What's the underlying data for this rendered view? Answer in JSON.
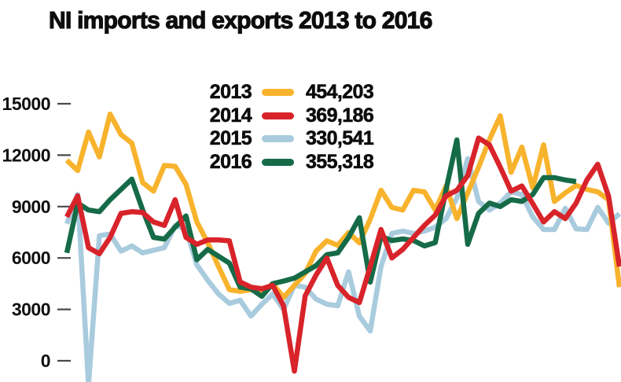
{
  "title": "NI imports and exports 2013 to 2016",
  "chart_data": {
    "type": "line",
    "title": "NI imports and exports 2013 to 2016",
    "x_unit": "week of year (1-52), no x-axis labels shown",
    "ylabel": "",
    "ylim": [
      -1500,
      15500
    ],
    "yticks": [
      15000,
      12000,
      9000,
      6000,
      3000,
      0
    ],
    "grid": false,
    "legend_position": "top-center",
    "tick_color": "#4a4a4a",
    "label_color": "#101010",
    "draw_order": [
      "2015",
      "2013",
      "2016",
      "2014"
    ],
    "series": [
      {
        "name": "2013",
        "total_label": "454,203",
        "color": "#F8B32D",
        "values": [
          11700,
          11100,
          13350,
          11900,
          14400,
          13200,
          12700,
          10400,
          9900,
          11400,
          11350,
          10300,
          8100,
          6900,
          5500,
          4150,
          4050,
          4150,
          4000,
          4500,
          3700,
          4400,
          5100,
          6400,
          7000,
          6740,
          7480,
          6880,
          8260,
          9950,
          8950,
          8800,
          9950,
          9860,
          8800,
          10200,
          8300,
          9800,
          11300,
          12900,
          14300,
          11000,
          12470,
          10090,
          12600,
          9300,
          9800,
          10230,
          10000,
          9860,
          9400,
          4300
        ]
      },
      {
        "name": "2014",
        "total_label": "369,186",
        "color": "#D8232A",
        "values": [
          8400,
          9630,
          6600,
          6250,
          7200,
          8600,
          8700,
          8650,
          8100,
          7900,
          9400,
          7200,
          6800,
          7050,
          7050,
          7000,
          4600,
          4300,
          4200,
          4400,
          3200,
          -600,
          3800,
          5000,
          6000,
          4400,
          3700,
          3400,
          5500,
          7660,
          6000,
          6500,
          7200,
          7900,
          8500,
          9630,
          9950,
          10800,
          13000,
          12600,
          11300,
          9900,
          10200,
          9170,
          8100,
          8700,
          8300,
          9200,
          10550,
          11470,
          9600,
          5500
        ]
      },
      {
        "name": "2015",
        "total_label": "330,541",
        "color": "#A9CBDE",
        "values": [
          8000,
          9700,
          -1400,
          7300,
          7400,
          6400,
          6700,
          6300,
          6450,
          6600,
          7900,
          7700,
          5600,
          4700,
          3900,
          3350,
          3530,
          2610,
          3300,
          3900,
          3000,
          4400,
          4300,
          3600,
          3300,
          3210,
          5190,
          2600,
          1740,
          5500,
          7430,
          7570,
          7430,
          7570,
          7800,
          8300,
          9500,
          11800,
          9300,
          8800,
          9200,
          9860,
          9700,
          8400,
          7660,
          7660,
          8900,
          7700,
          7660,
          8950,
          8030,
          8580
        ]
      },
      {
        "name": "2016",
        "total_label": "355,318",
        "color": "#156B47",
        "values": [
          6300,
          9200,
          8800,
          8700,
          9400,
          10000,
          10600,
          8800,
          7200,
          7100,
          7800,
          8450,
          5900,
          6500,
          6100,
          5700,
          4300,
          4200,
          3760,
          4500,
          4650,
          4820,
          5190,
          5550,
          6190,
          6300,
          7200,
          8350,
          4590,
          7250,
          7020,
          7110,
          7020,
          6700,
          6900,
          10000,
          12890,
          6800,
          8600,
          9200,
          9000,
          9400,
          9300,
          9700,
          10690,
          10690,
          10550,
          10460
        ]
      }
    ]
  }
}
